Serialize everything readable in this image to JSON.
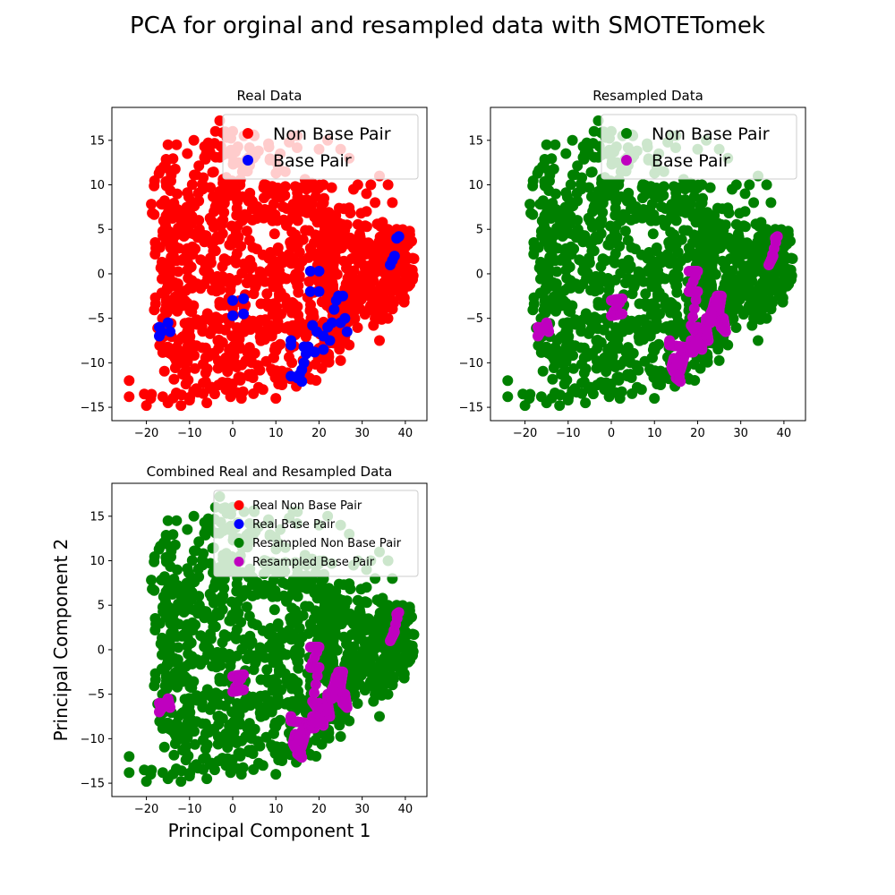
{
  "figure": {
    "suptitle": "PCA for orginal and resampled data with SMOTETomek"
  },
  "chart_data": [
    {
      "type": "scatter",
      "title": "Real Data",
      "xlabel": "",
      "ylabel": "",
      "xlim": [
        -28,
        45
      ],
      "ylim": [
        -16.5,
        18.7
      ],
      "xticks": [
        -20,
        -10,
        0,
        10,
        20,
        30,
        40
      ],
      "yticks": [
        -15,
        -10,
        -5,
        0,
        5,
        10,
        15
      ],
      "legend_position": "top-right",
      "series": [
        {
          "name": "Non Base Pair",
          "color": "#ff0000",
          "role": "non-base-pair"
        },
        {
          "name": "Base Pair",
          "color": "#0000ff",
          "role": "base-pair",
          "points": [
            [
              -17,
              -6
            ],
            [
              -16.5,
              -6.5
            ],
            [
              -17,
              -7
            ],
            [
              -15,
              -5.5
            ],
            [
              -14.5,
              -6.5
            ],
            [
              0,
              -3
            ],
            [
              2.5,
              -2.8
            ],
            [
              0,
              -4.7
            ],
            [
              2.5,
              -4.5
            ],
            [
              18,
              0.3
            ],
            [
              20,
              0.3
            ],
            [
              18,
              -2
            ],
            [
              20,
              -2
            ],
            [
              18.5,
              -5.8
            ],
            [
              19.5,
              -6.5
            ],
            [
              13.5,
              -7.5
            ],
            [
              13.5,
              -8
            ],
            [
              16.5,
              -8.2
            ],
            [
              17,
              -9
            ],
            [
              16.5,
              -10
            ],
            [
              16,
              -10.8
            ],
            [
              15.5,
              -11.3
            ],
            [
              15,
              -11.7
            ],
            [
              16,
              -12.1
            ],
            [
              13.5,
              -11.5
            ],
            [
              17.5,
              -8.2
            ],
            [
              19,
              -8.8
            ],
            [
              21,
              -8.5
            ],
            [
              21,
              -7
            ],
            [
              22.5,
              -7.5
            ],
            [
              22,
              -6
            ],
            [
              23,
              -5.5
            ],
            [
              23.5,
              -4
            ],
            [
              24,
              -3
            ],
            [
              24.5,
              -2.5
            ],
            [
              25.5,
              -2.5
            ],
            [
              25,
              -5.5
            ],
            [
              26,
              -5
            ],
            [
              26.5,
              -6.5
            ],
            [
              38,
              4
            ],
            [
              38.5,
              4.2
            ],
            [
              37,
              1.5
            ],
            [
              37.5,
              2
            ],
            [
              36.5,
              1
            ]
          ]
        }
      ]
    },
    {
      "type": "scatter",
      "title": "Resampled Data",
      "xlabel": "",
      "ylabel": "",
      "xlim": [
        -28,
        45
      ],
      "ylim": [
        -16.5,
        18.7
      ],
      "xticks": [
        -20,
        -10,
        0,
        10,
        20,
        30,
        40
      ],
      "yticks": [
        -15,
        -10,
        -5,
        0,
        5,
        10,
        15
      ],
      "legend_position": "top-right",
      "series": [
        {
          "name": "Non Base Pair",
          "color": "#008000",
          "role": "non-base-pair"
        },
        {
          "name": "Base Pair",
          "color": "#bf00bf",
          "role": "base-pair-dense"
        }
      ]
    },
    {
      "type": "scatter",
      "title": "Combined Real and Resampled Data",
      "xlabel": "Principal Component 1",
      "ylabel": "Principal Component 2",
      "xlim": [
        -28,
        45
      ],
      "ylim": [
        -16.5,
        18.7
      ],
      "xticks": [
        -20,
        -10,
        0,
        10,
        20,
        30,
        40
      ],
      "yticks": [
        -15,
        -10,
        -5,
        0,
        5,
        10,
        15
      ],
      "legend_position": "top-right",
      "series": [
        {
          "name": "Real Non Base Pair",
          "color": "#ff0000",
          "role": "hidden"
        },
        {
          "name": "Real Base Pair",
          "color": "#0000ff",
          "role": "hidden"
        },
        {
          "name": "Resampled Non Base Pair",
          "color": "#008000",
          "role": "non-base-pair"
        },
        {
          "name": "Resampled Base Pair",
          "color": "#bf00bf",
          "role": "base-pair-dense"
        }
      ]
    }
  ],
  "shared": {
    "non_base_pair_blobs": [
      [
        -19,
        -10,
        -14,
        14
      ],
      [
        -18,
        -9,
        -10,
        10
      ],
      [
        -14,
        -3,
        -14,
        15
      ],
      [
        -10,
        2,
        -13,
        15
      ],
      [
        -5,
        5,
        -14,
        16
      ],
      [
        -1,
        9,
        -12,
        15
      ],
      [
        4,
        15,
        -13,
        15
      ],
      [
        8,
        19,
        -12,
        12
      ],
      [
        13,
        23,
        -12,
        10
      ],
      [
        18,
        27,
        -10,
        8
      ],
      [
        21,
        30,
        -7,
        7
      ],
      [
        25,
        36,
        -6,
        6
      ],
      [
        30,
        40,
        -4,
        4
      ],
      [
        34,
        42,
        -2,
        5
      ]
    ],
    "non_base_pair_outliers": [
      [
        -24,
        -12
      ],
      [
        -24,
        -13.8
      ],
      [
        -20.5,
        -13.5
      ],
      [
        -20,
        -14.8
      ],
      [
        -19,
        -14
      ],
      [
        -15,
        -14.5
      ],
      [
        -15,
        14.5
      ],
      [
        -13,
        14.5
      ],
      [
        -9,
        15
      ],
      [
        -4,
        16
      ],
      [
        -3,
        17.2
      ],
      [
        0,
        16
      ],
      [
        5,
        15.5
      ],
      [
        11,
        13.5
      ],
      [
        14,
        15.5
      ],
      [
        15,
        15.5
      ],
      [
        20,
        14
      ],
      [
        21,
        10
      ],
      [
        22,
        15
      ],
      [
        25,
        14
      ],
      [
        27,
        13
      ],
      [
        28,
        9.5
      ],
      [
        29,
        10
      ],
      [
        31,
        9
      ],
      [
        31,
        7
      ],
      [
        32,
        10
      ],
      [
        33,
        8
      ],
      [
        34,
        11
      ],
      [
        36,
        10
      ],
      [
        36,
        5
      ],
      [
        37,
        8
      ],
      [
        38,
        5
      ],
      [
        40,
        3
      ],
      [
        41,
        4.8
      ],
      [
        41,
        0.5
      ],
      [
        42,
        1.7
      ],
      [
        35,
        -1
      ],
      [
        33,
        -5
      ],
      [
        34,
        -7.5
      ],
      [
        32,
        -4
      ],
      [
        31,
        -2
      ],
      [
        28,
        -3
      ],
      [
        27,
        -8
      ],
      [
        10,
        -14
      ],
      [
        7,
        -13
      ],
      [
        2,
        -14
      ],
      [
        -1,
        -13
      ],
      [
        -6,
        -14.5
      ],
      [
        -10,
        -14.2
      ],
      [
        -12,
        -14.8
      ]
    ],
    "base_pair_dense": [
      [
        -17,
        -6
      ],
      [
        -16.5,
        -6.5
      ],
      [
        -17,
        -7
      ],
      [
        -15,
        -5.5
      ],
      [
        -14.5,
        -6.5
      ],
      [
        -16,
        -6
      ],
      [
        0,
        -3
      ],
      [
        1,
        -2.9
      ],
      [
        2.5,
        -2.8
      ],
      [
        0,
        -4.7
      ],
      [
        1.2,
        -4.6
      ],
      [
        2.5,
        -4.5
      ],
      [
        18,
        0.3
      ],
      [
        19,
        0.3
      ],
      [
        20,
        0.3
      ],
      [
        18,
        -2
      ],
      [
        19,
        -2
      ],
      [
        20,
        -2
      ],
      [
        18.5,
        -5.8
      ],
      [
        19.5,
        -6.5
      ],
      [
        20,
        -6
      ],
      [
        13.5,
        -7.5
      ],
      [
        13.5,
        -8
      ],
      [
        16.5,
        -8.2
      ],
      [
        17,
        -9
      ],
      [
        16.5,
        -10
      ],
      [
        16,
        -10.8
      ],
      [
        15.5,
        -11.3
      ],
      [
        15,
        -11.7
      ],
      [
        16,
        -12.1
      ],
      [
        15,
        -10
      ],
      [
        14.5,
        -9.5
      ],
      [
        14,
        -10.5
      ],
      [
        14.5,
        -11
      ],
      [
        16,
        -9.2
      ],
      [
        17.5,
        -8.2
      ],
      [
        18,
        -8.8
      ],
      [
        19,
        -8.8
      ],
      [
        18.5,
        -7.5
      ],
      [
        19.5,
        -7.8
      ],
      [
        20,
        -7
      ],
      [
        21,
        -8.5
      ],
      [
        21,
        -7
      ],
      [
        21.5,
        -6.5
      ],
      [
        22.5,
        -7.5
      ],
      [
        22,
        -6
      ],
      [
        22,
        -5
      ],
      [
        23,
        -5.5
      ],
      [
        23,
        -4.5
      ],
      [
        23.5,
        -4
      ],
      [
        24,
        -3
      ],
      [
        24,
        -5
      ],
      [
        24.5,
        -2.5
      ],
      [
        25.5,
        -2.5
      ],
      [
        25,
        -4
      ],
      [
        25,
        -5.5
      ],
      [
        26,
        -5
      ],
      [
        26.5,
        -6.5
      ],
      [
        25.5,
        -6
      ],
      [
        38,
        4
      ],
      [
        38.5,
        4.2
      ],
      [
        37,
        1.5
      ],
      [
        37.5,
        2
      ],
      [
        36.5,
        1
      ]
    ]
  }
}
